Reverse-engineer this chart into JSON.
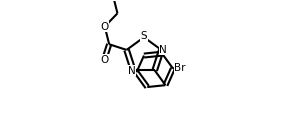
{
  "bg": "#ffffff",
  "lc": "#000000",
  "lw": 1.5,
  "dbo": 0.012,
  "fs": 7.5,
  "figsize": [
    2.86,
    1.4
  ],
  "dpi": 100,
  "xlim": [
    0.0,
    1.0
  ],
  "ylim": [
    0.0,
    0.72
  ]
}
